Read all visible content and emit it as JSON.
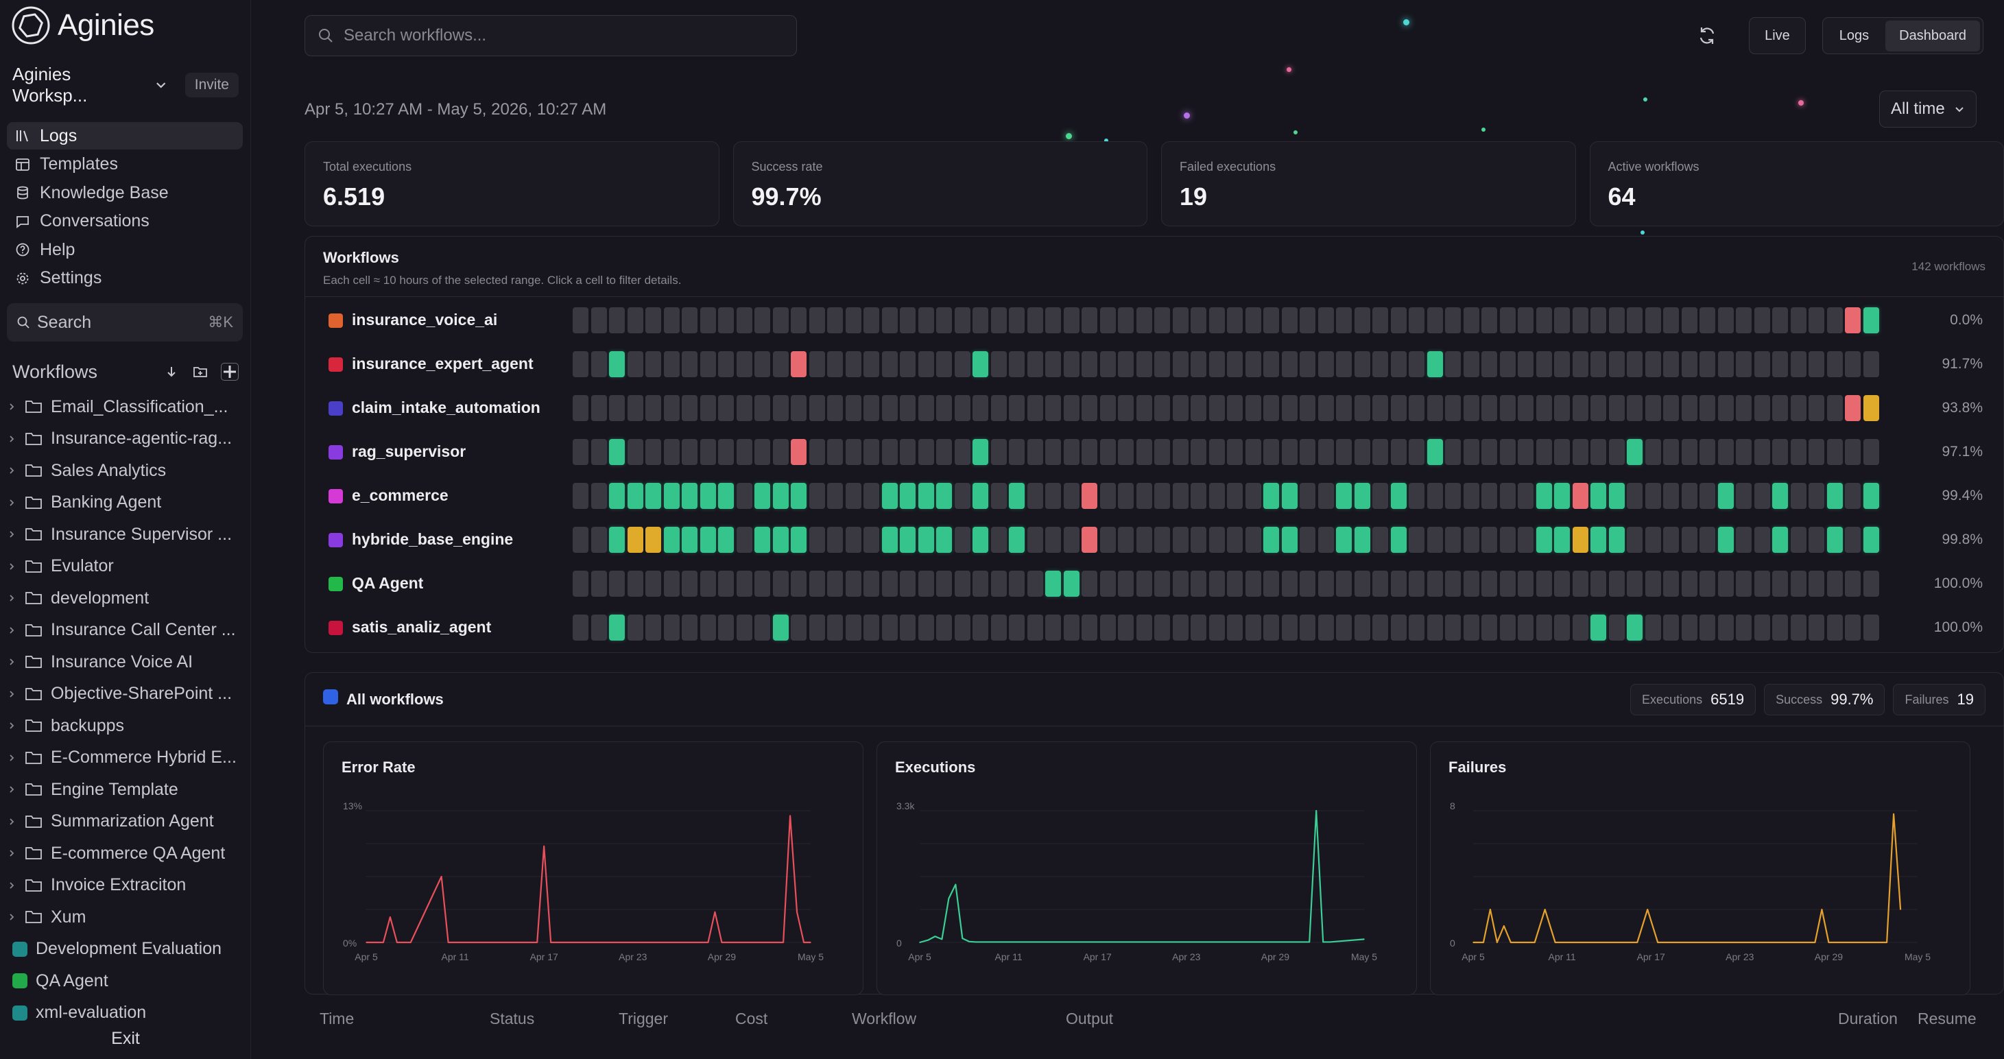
{
  "app": {
    "name": "Aginies"
  },
  "workspace": {
    "name": "Aginies Worksp...",
    "invite_label": "Invite"
  },
  "nav": [
    {
      "label": "Logs",
      "icon": "library-icon",
      "active": true
    },
    {
      "label": "Templates",
      "icon": "layout-icon",
      "active": false
    },
    {
      "label": "Knowledge Base",
      "icon": "database-icon",
      "active": false
    },
    {
      "label": "Conversations",
      "icon": "chat-icon",
      "active": false
    },
    {
      "label": "Help",
      "icon": "help-icon",
      "active": false
    },
    {
      "label": "Settings",
      "icon": "gear-icon",
      "active": false
    }
  ],
  "sidebar_search": {
    "label": "Search",
    "shortcut": "⌘K"
  },
  "workflows_section": {
    "title": "Workflows"
  },
  "tree": [
    {
      "type": "folder",
      "label": "Email_Classification_..."
    },
    {
      "type": "folder",
      "label": "Insurance-agentic-rag..."
    },
    {
      "type": "folder",
      "label": "Sales Analytics"
    },
    {
      "type": "folder",
      "label": "Banking Agent"
    },
    {
      "type": "folder",
      "label": "Insurance Supervisor ..."
    },
    {
      "type": "folder",
      "label": "Evulator"
    },
    {
      "type": "folder",
      "label": "development"
    },
    {
      "type": "folder",
      "label": "Insurance Call Center ..."
    },
    {
      "type": "folder",
      "label": "Insurance Voice AI"
    },
    {
      "type": "folder",
      "label": "Objective-SharePoint ..."
    },
    {
      "type": "folder",
      "label": "backupps"
    },
    {
      "type": "folder",
      "label": "E-Commerce Hybrid E..."
    },
    {
      "type": "folder",
      "label": "Engine Template"
    },
    {
      "type": "folder",
      "label": "Summarization Agent"
    },
    {
      "type": "folder",
      "label": "E-commerce QA Agent"
    },
    {
      "type": "folder",
      "label": "Invoice Extraciton"
    },
    {
      "type": "folder",
      "label": "Xum"
    },
    {
      "type": "workflow",
      "label": "Development Evaluation",
      "color": "#1f8a8a"
    },
    {
      "type": "workflow",
      "label": "QA Agent",
      "color": "#22a94a"
    },
    {
      "type": "workflow",
      "label": "xml-evaluation",
      "color": "#1f8a8a"
    }
  ],
  "exit_label": "Exit",
  "top": {
    "search_placeholder": "Search workflows...",
    "live_label": "Live",
    "logs_label": "Logs",
    "dashboard_label": "Dashboard"
  },
  "date_range": "Apr 5, 10:27 AM - May 5, 2026, 10:27 AM",
  "time_filter": "All time",
  "stats": [
    {
      "label": "Total executions",
      "value": "6.519"
    },
    {
      "label": "Success rate",
      "value": "99.7%"
    },
    {
      "label": "Failed executions",
      "value": "19"
    },
    {
      "label": "Active workflows",
      "value": "64"
    }
  ],
  "workflows_panel": {
    "title": "Workflows",
    "subtitle": "Each cell ≈ 10 hours of the selected range. Click a cell to filter details.",
    "count": "142 workflows",
    "rows": [
      {
        "name": "insurance_voice_ai",
        "color": "#e0622e",
        "pct": "0.0%",
        "cells": "000000000000000000000000000000000000000000000000000000000000000000000021"
      },
      {
        "name": "insurance_expert_agent",
        "color": "#d8263c",
        "pct": "91.7%",
        "cells": "001000000000200000000010000000000000000000000001000000000000000000000000"
      },
      {
        "name": "claim_intake_automation",
        "color": "#4a3fc8",
        "pct": "93.8%",
        "cells": "000000000000000000000000000000000000000000000000000000000000000000000023"
      },
      {
        "name": "rag_supervisor",
        "color": "#8a3be0",
        "pct": "97.1%",
        "cells": "001000000000200000000010000000000000000000000001000000000010000000000000"
      },
      {
        "name": "e_commerce",
        "color": "#d63ad6",
        "pct": "99.4%",
        "cells": "001111111011100001111010100020000000001100110100000001121100000100100101"
      },
      {
        "name": "hybride_base_engine",
        "color": "#8a3be0",
        "pct": "99.8%",
        "cells": "001331111011100001111010100020000000001100110100000001131100000100100101"
      },
      {
        "name": "QA Agent",
        "color": "#22b84a",
        "pct": "100.0%",
        "cells": "000000000000000000000000001100000000000000000000000000000000000000000000"
      },
      {
        "name": "satis_analiz_agent",
        "color": "#c8143c",
        "pct": "100.0%",
        "cells": "001000000001000000000000000000000000000000000000000000001010000000000000"
      }
    ]
  },
  "all_workflows": {
    "title": "All workflows",
    "executions_label": "Executions",
    "executions_value": "6519",
    "success_label": "Success",
    "success_value": "99.7%",
    "failures_label": "Failures",
    "failures_value": "19"
  },
  "chart_data": [
    {
      "type": "line",
      "title": "Error Rate",
      "color": "#e8505b",
      "x_ticks": [
        "Apr 5",
        "Apr 11",
        "Apr 17",
        "Apr 23",
        "Apr 29",
        "May 5"
      ],
      "y_ticks": [
        "0%",
        "13%"
      ],
      "ylim": [
        0,
        13
      ],
      "x": [
        0,
        1,
        1.4,
        1.8,
        2.2,
        2.6,
        4.4,
        4.8,
        5.2,
        8,
        10,
        10.4,
        10.8,
        11.2,
        16,
        20,
        20.4,
        20.8,
        21.2,
        24.4,
        24.8,
        25.2,
        25.6,
        25.9,
        26
      ],
      "values": [
        0,
        0,
        2.5,
        0,
        0,
        0,
        6.5,
        0,
        0,
        0,
        0,
        9.5,
        0,
        0,
        0,
        0,
        3,
        0,
        0,
        0,
        12.5,
        3,
        0,
        0,
        0
      ]
    },
    {
      "type": "line",
      "title": "Executions",
      "color": "#3ccf95",
      "x_ticks": [
        "Apr 5",
        "Apr 11",
        "Apr 17",
        "Apr 23",
        "Apr 29",
        "May 5"
      ],
      "y_ticks": [
        "0",
        "3.3k"
      ],
      "ylim": [
        0,
        3300
      ],
      "x": [
        0,
        0.5,
        0.9,
        1.3,
        1.7,
        2.1,
        2.5,
        2.9,
        3.3,
        10,
        20,
        22.8,
        23.2,
        23.6,
        24,
        26
      ],
      "values": [
        0,
        60,
        150,
        80,
        1100,
        1450,
        100,
        20,
        10,
        10,
        10,
        10,
        3300,
        10,
        10,
        80
      ]
    },
    {
      "type": "line",
      "title": "Failures",
      "color": "#e6a12c",
      "x_ticks": [
        "Apr 5",
        "Apr 11",
        "Apr 17",
        "Apr 23",
        "Apr 29",
        "May 5"
      ],
      "y_ticks": [
        "0",
        "8"
      ],
      "ylim": [
        0,
        8
      ],
      "x": [
        0,
        0.6,
        1,
        1.4,
        1.8,
        2.2,
        2.6,
        3.6,
        4.2,
        4.8,
        9.6,
        10.2,
        10.8,
        20,
        20.4,
        20.8,
        24.2,
        24.6,
        24.9,
        25
      ],
      "values": [
        0,
        0,
        2,
        0,
        1,
        0,
        0,
        0,
        2,
        0,
        0,
        2,
        0,
        0,
        2,
        0,
        0,
        7.8,
        3.5,
        2
      ]
    }
  ],
  "table_headers": [
    "Time",
    "Status",
    "Trigger",
    "Cost",
    "Workflow",
    "Output",
    "Duration",
    "Resume"
  ]
}
